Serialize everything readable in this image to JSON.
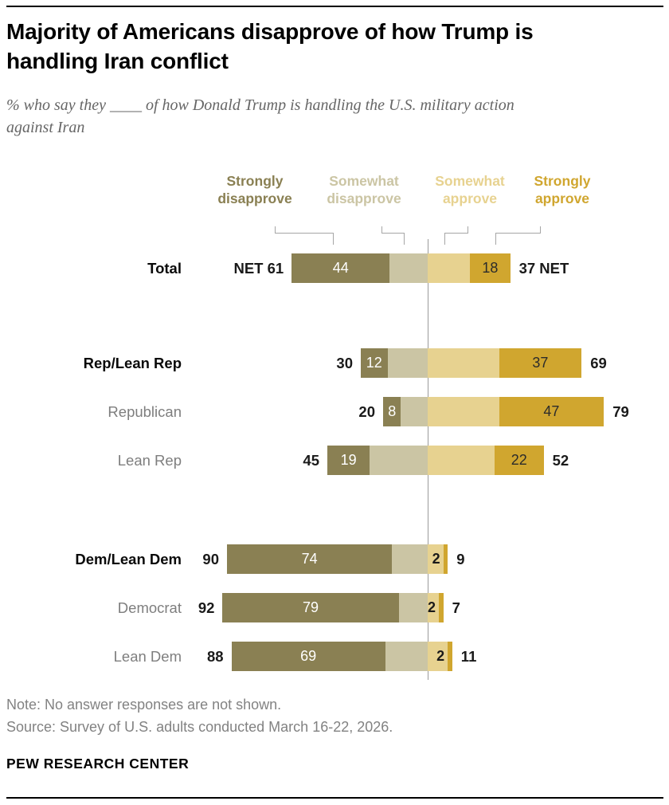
{
  "title": "Majority of Americans disapprove of how Trump is handling Iran conflict",
  "subtitle": "% who say they ____ of how Donald Trump is handling the U.S. military action against Iran",
  "legend": [
    {
      "label": "Strongly disapprove",
      "color": "#8a8053"
    },
    {
      "label": "Somewhat disapprove",
      "color": "#cbc5a4"
    },
    {
      "label": "Somewhat approve",
      "color": "#e7d290"
    },
    {
      "label": "Strongly approve",
      "color": "#d0a62f"
    }
  ],
  "chart_data": {
    "type": "bar",
    "variant": "diverging-stacked-horizontal",
    "unit": "percent",
    "net_label": "NET",
    "categories": [
      "Total",
      "Rep/Lean Rep",
      "Republican",
      "Lean Rep",
      "Dem/Lean Dem",
      "Democrat",
      "Lean Dem"
    ],
    "group_header_rows": [
      0,
      1,
      4
    ],
    "series": [
      {
        "name": "Strongly disapprove",
        "color": "#8a8053",
        "values": [
          44,
          12,
          8,
          19,
          74,
          79,
          69
        ],
        "labeled": true
      },
      {
        "name": "Somewhat disapprove",
        "color": "#cbc5a4",
        "values": [
          17,
          18,
          12,
          26,
          16,
          13,
          19
        ],
        "labeled": false
      },
      {
        "name": "Somewhat approve",
        "color": "#e7d290",
        "values": [
          19,
          32,
          32,
          30,
          7,
          5,
          9
        ],
        "labeled": false
      },
      {
        "name": "Strongly approve",
        "color": "#d0a62f",
        "values": [
          18,
          37,
          47,
          22,
          2,
          2,
          2
        ],
        "labeled": true
      }
    ],
    "net_disapprove": [
      61,
      30,
      20,
      45,
      90,
      92,
      88
    ],
    "net_approve": [
      37,
      69,
      79,
      52,
      9,
      7,
      11
    ],
    "axis": {
      "center_value": 0,
      "grid": false,
      "legend_position": "top"
    }
  },
  "note": "Note: No answer responses are not shown.",
  "source": "Source: Survey of U.S. adults conducted March 16-22, 2026.",
  "brand": "PEW RESEARCH CENTER"
}
